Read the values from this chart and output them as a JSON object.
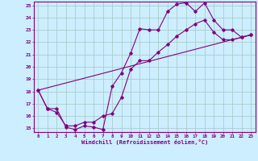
{
  "title": "",
  "xlabel": "Windchill (Refroidissement éolien,°C)",
  "bg_color": "#cceeff",
  "grid_color": "#aacccc",
  "line_color": "#800080",
  "xlim": [
    -0.5,
    23.5
  ],
  "ylim": [
    14.7,
    25.3
  ],
  "xticks": [
    0,
    1,
    2,
    3,
    4,
    5,
    6,
    7,
    8,
    9,
    10,
    11,
    12,
    13,
    14,
    15,
    16,
    17,
    18,
    19,
    20,
    21,
    22,
    23
  ],
  "yticks": [
    15,
    16,
    17,
    18,
    19,
    20,
    21,
    22,
    23,
    24,
    25
  ],
  "line1_x": [
    0,
    1,
    2,
    3,
    4,
    5,
    6,
    7,
    8,
    9,
    10,
    11,
    12,
    13,
    14,
    15,
    16,
    17,
    18,
    19,
    20,
    21,
    22,
    23
  ],
  "line1_y": [
    18.1,
    16.6,
    16.6,
    15.1,
    14.9,
    15.2,
    15.1,
    14.9,
    18.4,
    19.5,
    21.1,
    23.1,
    23.0,
    23.0,
    24.5,
    25.1,
    25.2,
    24.5,
    25.2,
    23.8,
    23.0,
    23.0,
    22.4,
    22.6
  ],
  "line2_x": [
    0,
    1,
    2,
    3,
    4,
    5,
    6,
    7,
    8,
    9,
    10,
    11,
    12,
    13,
    14,
    15,
    16,
    17,
    18,
    19,
    20,
    21,
    22,
    23
  ],
  "line2_y": [
    18.1,
    16.6,
    16.3,
    15.2,
    15.2,
    15.5,
    15.5,
    16.0,
    16.2,
    17.5,
    19.8,
    20.5,
    20.5,
    21.2,
    21.8,
    22.5,
    23.0,
    23.5,
    23.8,
    22.8,
    22.2,
    22.2,
    22.4,
    22.6
  ],
  "line3_x": [
    0,
    23
  ],
  "line3_y": [
    18.1,
    22.6
  ]
}
